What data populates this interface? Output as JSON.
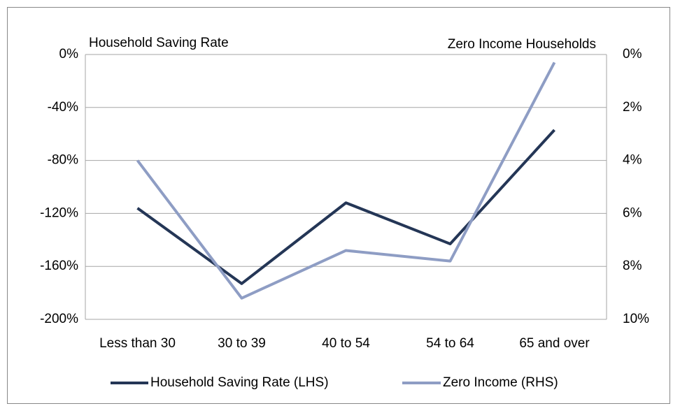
{
  "chart_data": {
    "type": "line",
    "y_title": "Household Saving Rate",
    "y2_title": "Zero Income Households",
    "categories": [
      "Less than 30",
      "30 to 39",
      "40 to 54",
      "54 to 64",
      "65 and over"
    ],
    "series": [
      {
        "name": "Household Saving Rate (LHS)",
        "color": "#243656",
        "values": [
          -116,
          -173,
          -112,
          -143,
          -57
        ]
      },
      {
        "name": "Zero Income (RHS)",
        "color": "#8e9dc4",
        "axis": "y2",
        "values": [
          4.0,
          9.2,
          7.4,
          7.8,
          0.3
        ]
      }
    ],
    "ylim": [
      -200,
      0
    ],
    "yticks": [
      {
        "value": 0,
        "label": "0%"
      },
      {
        "value": -40,
        "label": "-40%"
      },
      {
        "value": -80,
        "label": "-80%"
      },
      {
        "value": -120,
        "label": "-120%"
      },
      {
        "value": -160,
        "label": "-160%"
      },
      {
        "value": -200,
        "label": "-200%"
      }
    ],
    "y2lim": [
      10,
      0
    ],
    "y2ticks": [
      {
        "value": 0,
        "label": "0%"
      },
      {
        "value": 2,
        "label": "2%"
      },
      {
        "value": 4,
        "label": "4%"
      },
      {
        "value": 6,
        "label": "6%"
      },
      {
        "value": 8,
        "label": "8%"
      },
      {
        "value": 10,
        "label": "10%"
      }
    ],
    "grid": true,
    "legend": "bottom"
  }
}
